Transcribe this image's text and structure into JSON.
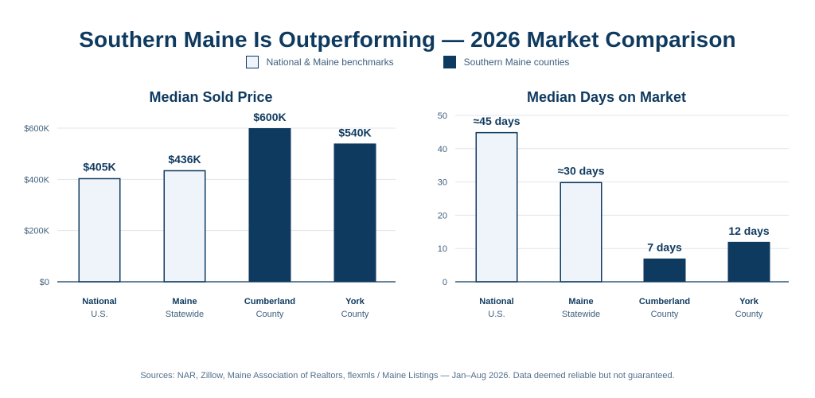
{
  "title": "Southern Maine Is Outperforming — 2026 Market Comparison",
  "colors": {
    "benchmark_fill": "#eef4fa",
    "benchmark_stroke": "#0f3a5f",
    "county_fill": "#0f3a5f",
    "grid": "#e1e6ec",
    "axis": "#0f3a5f",
    "tick": "#40607e"
  },
  "legend": [
    {
      "label": "National & Maine benchmarks",
      "kind": "benchmark"
    },
    {
      "label": "Southern Maine counties",
      "kind": "county"
    }
  ],
  "sources": "Sources: NAR, Zillow, Maine Association of Realtors, flexmls / Maine Listings — Jan–Aug 2026. Data deemed reliable but not guaranteed.",
  "chart_data": [
    {
      "type": "bar",
      "title": "Median Sold Price",
      "categories": [
        "National",
        "Maine",
        "Cumberland",
        "York"
      ],
      "subcategories": [
        "U.S.",
        "Statewide",
        "County",
        "County"
      ],
      "kinds": [
        "benchmark",
        "benchmark",
        "county",
        "county"
      ],
      "values": [
        405000,
        436000,
        600000,
        540000
      ],
      "data_labels": [
        "$405K",
        "$436K",
        "$600K",
        "$540K"
      ],
      "ylim": [
        0,
        600000
      ],
      "yticks": [
        0,
        200000,
        400000,
        600000
      ],
      "ytick_labels": [
        "$0",
        "$200K",
        "$400K",
        "$600K"
      ],
      "grid": true
    },
    {
      "type": "bar",
      "title": "Median Days on Market",
      "categories": [
        "National",
        "Maine",
        "Cumberland",
        "York"
      ],
      "subcategories": [
        "U.S.",
        "Statewide",
        "County",
        "County"
      ],
      "kinds": [
        "benchmark",
        "benchmark",
        "county",
        "county"
      ],
      "values": [
        45,
        30,
        7,
        12
      ],
      "data_labels": [
        "≈45 days",
        "≈30 days",
        "7 days",
        "12 days"
      ],
      "ylim": [
        0,
        50
      ],
      "yticks": [
        0,
        10,
        20,
        30,
        40,
        50
      ],
      "ytick_labels": [
        "0",
        "10",
        "20",
        "30",
        "40",
        "50"
      ],
      "grid": true
    }
  ]
}
